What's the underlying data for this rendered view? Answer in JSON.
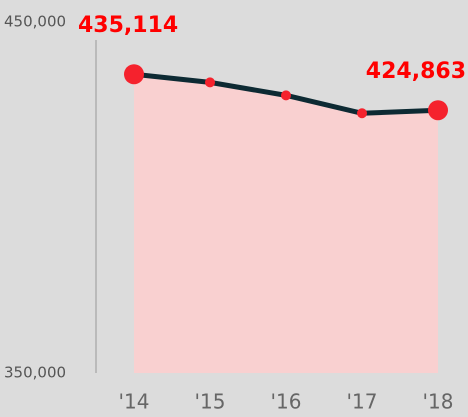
{
  "chart_data": {
    "type": "line",
    "categories": [
      "'14",
      "'15",
      "'16",
      "'17",
      "'18"
    ],
    "values": [
      435114,
      432800,
      429100,
      424000,
      424863
    ],
    "value_labels": [
      "435,114",
      null,
      null,
      null,
      "424,863"
    ],
    "color": "#f5222d",
    "line_color": "#0d2a33",
    "area_color": "#f9d0d0",
    "ylim": [
      350000,
      450000
    ],
    "yticks": [
      {
        "value": 350000,
        "label": "350,000"
      },
      {
        "value": 450000,
        "label": "450,000"
      }
    ]
  }
}
